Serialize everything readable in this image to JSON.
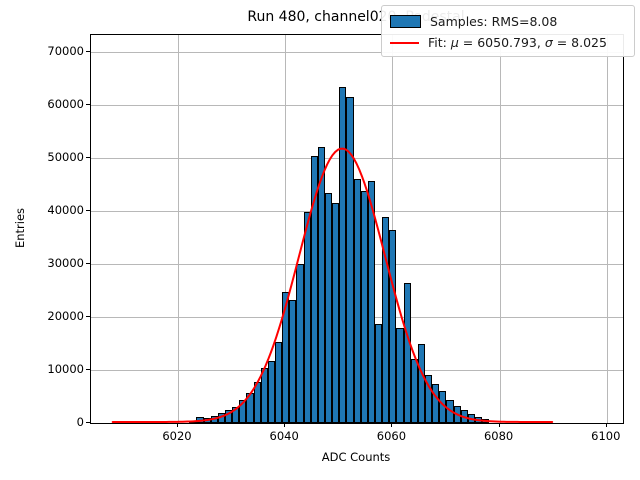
{
  "chart_data": {
    "type": "bar",
    "subtype": "histogram-with-gaussian-fit",
    "title": "Run 480, channel020, Pedestal",
    "xlabel": "ADC Counts",
    "ylabel": "Entries",
    "xticks": [
      "6020",
      "6040",
      "6060",
      "6080",
      "6100"
    ],
    "xtick_values": [
      6020,
      6040,
      6060,
      6080,
      6100
    ],
    "yticks": [
      "0",
      "10000",
      "20000",
      "30000",
      "40000",
      "50000",
      "60000",
      "70000"
    ],
    "ytick_values": [
      0,
      10000,
      20000,
      30000,
      40000,
      50000,
      60000,
      70000
    ],
    "xlim": [
      6003.5,
      6103.5
    ],
    "ylim": [
      0,
      73200
    ],
    "grid": true,
    "legend_position": "upper right",
    "histogram": {
      "label": "Samples: RMS=8.08",
      "color": "#1f77b4",
      "edge_color": "#000000",
      "bin_start": 6022.1,
      "bin_width": 1.333,
      "counts": [
        450,
        1150,
        900,
        1350,
        1850,
        2400,
        3100,
        4300,
        5700,
        7700,
        10300,
        11700,
        15300,
        24700,
        23200,
        30000,
        39900,
        50400,
        52100,
        43400,
        41500,
        63400,
        61500,
        46000,
        43700,
        45700,
        18700,
        38900,
        36500,
        17900,
        26400,
        12100,
        14900,
        9000,
        7300,
        6000,
        4400,
        3300,
        2400,
        1700,
        1100,
        700
      ]
    },
    "fit": {
      "label_parts": [
        "Fit: ",
        "μ",
        " = 6050.793, ",
        "σ",
        " = 8.025"
      ],
      "mu": 6050.793,
      "sigma": 8.025,
      "amplitude": 51600,
      "x_start": 6008,
      "x_end": 6090,
      "color": "#ff0000"
    }
  }
}
